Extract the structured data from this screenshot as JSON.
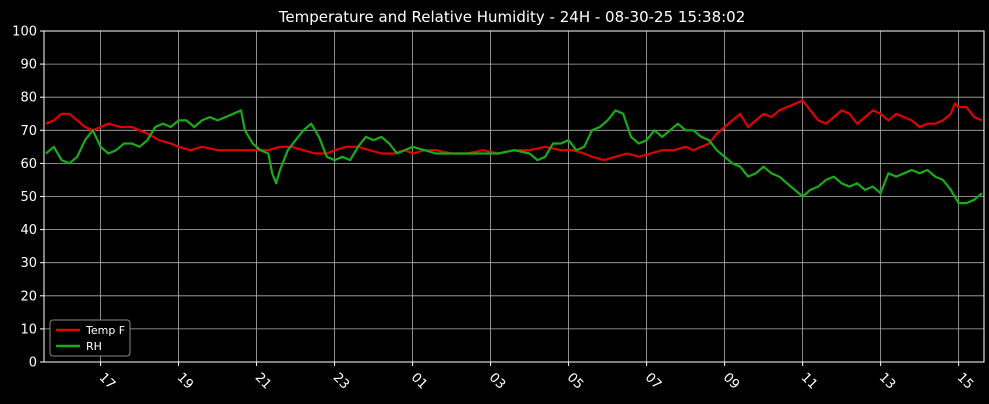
{
  "chart_data": {
    "type": "line",
    "title": "Temperature and Relative Humidity - 24H - 08-30-25 15:38:02",
    "xlabel": "",
    "ylabel": "",
    "x_unit": "hours since start of 08-29 (x > 24 = next day)",
    "xlim": [
      15.55,
      39.65
    ],
    "ylim": [
      0,
      100
    ],
    "yticks": [
      0,
      10,
      20,
      30,
      40,
      50,
      60,
      70,
      80,
      90,
      100
    ],
    "xticks": [
      {
        "x": 17,
        "label": "17"
      },
      {
        "x": 19,
        "label": "19"
      },
      {
        "x": 21,
        "label": "21"
      },
      {
        "x": 23,
        "label": "23"
      },
      {
        "x": 25,
        "label": "01"
      },
      {
        "x": 27,
        "label": "03"
      },
      {
        "x": 29,
        "label": "05"
      },
      {
        "x": 31,
        "label": "07"
      },
      {
        "x": 33,
        "label": "09"
      },
      {
        "x": 35,
        "label": "11"
      },
      {
        "x": 37,
        "label": "13"
      },
      {
        "x": 39,
        "label": "15"
      }
    ],
    "grid": true,
    "legend_position": "lower-left",
    "background": "#000000",
    "series": [
      {
        "name": "Temp F",
        "color": "#e00000",
        "points": [
          [
            15.6,
            72
          ],
          [
            15.8,
            73
          ],
          [
            16.0,
            75
          ],
          [
            16.2,
            75
          ],
          [
            16.4,
            73
          ],
          [
            16.6,
            71
          ],
          [
            16.8,
            70
          ],
          [
            17.0,
            71
          ],
          [
            17.2,
            72
          ],
          [
            17.5,
            71
          ],
          [
            17.8,
            71
          ],
          [
            18.0,
            70
          ],
          [
            18.2,
            69
          ],
          [
            18.5,
            67
          ],
          [
            18.8,
            66
          ],
          [
            19.0,
            65
          ],
          [
            19.3,
            64
          ],
          [
            19.6,
            65
          ],
          [
            20.0,
            64
          ],
          [
            20.4,
            64
          ],
          [
            20.8,
            64
          ],
          [
            21.0,
            64
          ],
          [
            21.3,
            64
          ],
          [
            21.6,
            65
          ],
          [
            21.9,
            65
          ],
          [
            22.2,
            64
          ],
          [
            22.5,
            63
          ],
          [
            22.8,
            63
          ],
          [
            23.0,
            64
          ],
          [
            23.3,
            65
          ],
          [
            23.6,
            65
          ],
          [
            23.9,
            64
          ],
          [
            24.2,
            63
          ],
          [
            24.5,
            63
          ],
          [
            24.8,
            64
          ],
          [
            25.0,
            63
          ],
          [
            25.3,
            64
          ],
          [
            25.6,
            64
          ],
          [
            26.0,
            63
          ],
          [
            26.4,
            63
          ],
          [
            26.8,
            64
          ],
          [
            27.2,
            63
          ],
          [
            27.6,
            64
          ],
          [
            28.0,
            64
          ],
          [
            28.4,
            65
          ],
          [
            28.8,
            64
          ],
          [
            29.1,
            64
          ],
          [
            29.4,
            63
          ],
          [
            29.6,
            62
          ],
          [
            29.9,
            61
          ],
          [
            30.2,
            62
          ],
          [
            30.5,
            63
          ],
          [
            30.8,
            62
          ],
          [
            31.1,
            63
          ],
          [
            31.4,
            64
          ],
          [
            31.7,
            64
          ],
          [
            32.0,
            65
          ],
          [
            32.2,
            64
          ],
          [
            32.4,
            65
          ],
          [
            32.6,
            66
          ],
          [
            32.8,
            69
          ],
          [
            33.0,
            71
          ],
          [
            33.2,
            73
          ],
          [
            33.4,
            75
          ],
          [
            33.6,
            71
          ],
          [
            33.8,
            73
          ],
          [
            34.0,
            75
          ],
          [
            34.2,
            74
          ],
          [
            34.4,
            76
          ],
          [
            34.6,
            77
          ],
          [
            34.8,
            78
          ],
          [
            35.0,
            79
          ],
          [
            35.2,
            76
          ],
          [
            35.4,
            73
          ],
          [
            35.6,
            72
          ],
          [
            35.8,
            74
          ],
          [
            36.0,
            76
          ],
          [
            36.2,
            75
          ],
          [
            36.4,
            72
          ],
          [
            36.6,
            74
          ],
          [
            36.8,
            76
          ],
          [
            37.0,
            75
          ],
          [
            37.2,
            73
          ],
          [
            37.4,
            75
          ],
          [
            37.6,
            74
          ],
          [
            37.8,
            73
          ],
          [
            38.0,
            71
          ],
          [
            38.2,
            72
          ],
          [
            38.4,
            72
          ],
          [
            38.6,
            73
          ],
          [
            38.8,
            75
          ],
          [
            38.9,
            78
          ],
          [
            39.0,
            77
          ],
          [
            39.2,
            77
          ],
          [
            39.4,
            74
          ],
          [
            39.6,
            73
          ]
        ]
      },
      {
        "name": "RH",
        "color": "#1aaa1a",
        "points": [
          [
            15.6,
            63
          ],
          [
            15.8,
            65
          ],
          [
            16.0,
            61
          ],
          [
            16.2,
            60
          ],
          [
            16.4,
            62
          ],
          [
            16.6,
            67
          ],
          [
            16.8,
            70
          ],
          [
            17.0,
            65
          ],
          [
            17.2,
            63
          ],
          [
            17.4,
            64
          ],
          [
            17.6,
            66
          ],
          [
            17.8,
            66
          ],
          [
            18.0,
            65
          ],
          [
            18.2,
            67
          ],
          [
            18.4,
            71
          ],
          [
            18.6,
            72
          ],
          [
            18.8,
            71
          ],
          [
            19.0,
            73
          ],
          [
            19.2,
            73
          ],
          [
            19.4,
            71
          ],
          [
            19.6,
            73
          ],
          [
            19.8,
            74
          ],
          [
            20.0,
            73
          ],
          [
            20.2,
            74
          ],
          [
            20.4,
            75
          ],
          [
            20.6,
            76
          ],
          [
            20.7,
            70
          ],
          [
            20.9,
            66
          ],
          [
            21.1,
            64
          ],
          [
            21.3,
            63
          ],
          [
            21.4,
            57
          ],
          [
            21.5,
            54
          ],
          [
            21.6,
            58
          ],
          [
            21.8,
            64
          ],
          [
            22.0,
            67
          ],
          [
            22.2,
            70
          ],
          [
            22.4,
            72
          ],
          [
            22.6,
            68
          ],
          [
            22.8,
            62
          ],
          [
            23.0,
            61
          ],
          [
            23.2,
            62
          ],
          [
            23.4,
            61
          ],
          [
            23.6,
            65
          ],
          [
            23.8,
            68
          ],
          [
            24.0,
            67
          ],
          [
            24.2,
            68
          ],
          [
            24.4,
            66
          ],
          [
            24.6,
            63
          ],
          [
            24.8,
            64
          ],
          [
            25.0,
            65
          ],
          [
            25.3,
            64
          ],
          [
            25.6,
            63
          ],
          [
            26.0,
            63
          ],
          [
            26.4,
            63
          ],
          [
            26.8,
            63
          ],
          [
            27.2,
            63
          ],
          [
            27.6,
            64
          ],
          [
            28.0,
            63
          ],
          [
            28.2,
            61
          ],
          [
            28.4,
            62
          ],
          [
            28.6,
            66
          ],
          [
            28.8,
            66
          ],
          [
            29.0,
            67
          ],
          [
            29.2,
            64
          ],
          [
            29.4,
            65
          ],
          [
            29.6,
            70
          ],
          [
            29.8,
            71
          ],
          [
            30.0,
            73
          ],
          [
            30.2,
            76
          ],
          [
            30.4,
            75
          ],
          [
            30.6,
            68
          ],
          [
            30.8,
            66
          ],
          [
            31.0,
            67
          ],
          [
            31.2,
            70
          ],
          [
            31.4,
            68
          ],
          [
            31.6,
            70
          ],
          [
            31.8,
            72
          ],
          [
            32.0,
            70
          ],
          [
            32.2,
            70
          ],
          [
            32.4,
            68
          ],
          [
            32.6,
            67
          ],
          [
            32.8,
            64
          ],
          [
            33.0,
            62
          ],
          [
            33.2,
            60
          ],
          [
            33.4,
            59
          ],
          [
            33.6,
            56
          ],
          [
            33.8,
            57
          ],
          [
            34.0,
            59
          ],
          [
            34.2,
            57
          ],
          [
            34.4,
            56
          ],
          [
            34.6,
            54
          ],
          [
            34.8,
            52
          ],
          [
            35.0,
            50
          ],
          [
            35.2,
            52
          ],
          [
            35.4,
            53
          ],
          [
            35.6,
            55
          ],
          [
            35.8,
            56
          ],
          [
            36.0,
            54
          ],
          [
            36.2,
            53
          ],
          [
            36.4,
            54
          ],
          [
            36.6,
            52
          ],
          [
            36.8,
            53
          ],
          [
            37.0,
            51
          ],
          [
            37.2,
            57
          ],
          [
            37.4,
            56
          ],
          [
            37.6,
            57
          ],
          [
            37.8,
            58
          ],
          [
            38.0,
            57
          ],
          [
            38.2,
            58
          ],
          [
            38.4,
            56
          ],
          [
            38.6,
            55
          ],
          [
            38.8,
            52
          ],
          [
            39.0,
            48
          ],
          [
            39.2,
            48
          ],
          [
            39.4,
            49
          ],
          [
            39.6,
            51
          ]
        ]
      }
    ]
  }
}
